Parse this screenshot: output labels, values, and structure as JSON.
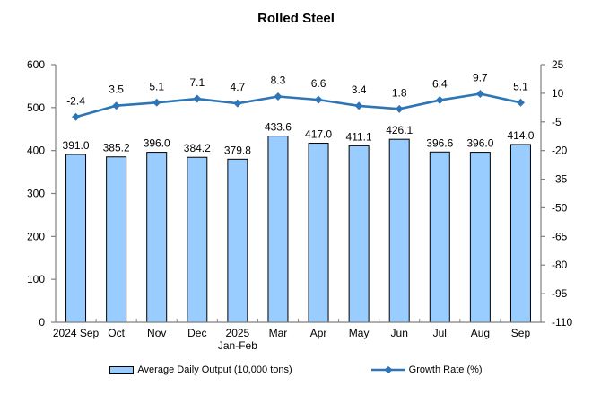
{
  "chart_data": {
    "type": "bar+line",
    "title": "Rolled Steel",
    "categories": [
      "2024 Sep",
      "Oct",
      "Nov",
      "Dec",
      "2025 Jan-Feb",
      "Mar",
      "Apr",
      "May",
      "Jun",
      "Jul",
      "Aug",
      "Sep"
    ],
    "x_labels": [
      [
        "2024 Sep"
      ],
      [
        "Oct"
      ],
      [
        "Nov"
      ],
      [
        "Dec"
      ],
      [
        "2025",
        "Jan-Feb"
      ],
      [
        "Mar"
      ],
      [
        "Apr"
      ],
      [
        "May"
      ],
      [
        "Jun"
      ],
      [
        "Jul"
      ],
      [
        "Aug"
      ],
      [
        "Sep"
      ]
    ],
    "series": [
      {
        "name": "Average Daily Output (10,000 tons)",
        "type": "bar",
        "axis": "left",
        "values": [
          391.0,
          385.2,
          396.0,
          384.2,
          379.8,
          433.6,
          417.0,
          411.1,
          426.1,
          396.6,
          396.0,
          414.0
        ]
      },
      {
        "name": "Growth Rate (%)",
        "type": "line",
        "axis": "right",
        "values": [
          -2.4,
          3.5,
          5.1,
          7.1,
          4.7,
          8.3,
          6.6,
          3.4,
          1.8,
          6.4,
          9.7,
          5.1
        ]
      }
    ],
    "left_axis": {
      "min": 0,
      "max": 600,
      "ticks": [
        600,
        500,
        400,
        300,
        200,
        100,
        0
      ]
    },
    "right_axis": {
      "min": -110,
      "max": 25,
      "ticks": [
        25,
        10,
        -5,
        -20,
        -35,
        -50,
        -65,
        -80,
        -95,
        -110
      ]
    },
    "legend_position": "bottom",
    "grid": false,
    "data_labels": true
  },
  "colors": {
    "bar_fill": "#99CCFF",
    "bar_border": "#000000",
    "line": "#2E75B6",
    "axis": "#7F7F7F",
    "text": "#000000",
    "background": "#FFFFFF"
  }
}
